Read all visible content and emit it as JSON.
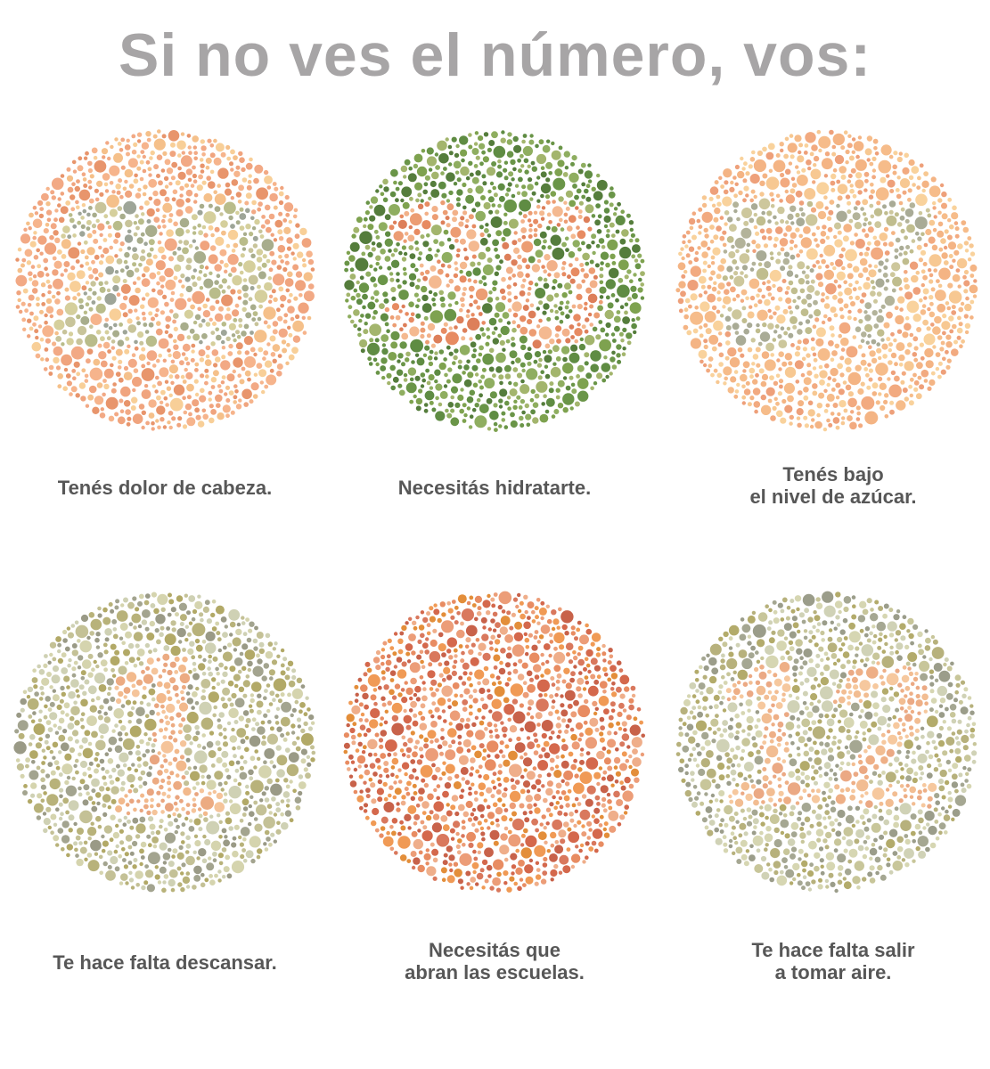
{
  "title": "Si no ves el número, vos:",
  "plates": [
    {
      "number": "29",
      "caption": [
        "Tenés dolor de cabeza."
      ],
      "background_colors": [
        "#f0a47e",
        "#f5c08a",
        "#f6b48c",
        "#e8956c",
        "#f8cf98",
        "#f2a985"
      ],
      "figure_colors": [
        "#9ea598",
        "#b9bc8a",
        "#c8c49a",
        "#a8ad8c",
        "#d5cf9c"
      ],
      "icon": "color-blindness-test-plate-icon"
    },
    {
      "number": "36",
      "caption": [
        "Necesitás hidratarte."
      ],
      "background_colors": [
        "#5f8c43",
        "#7ea24f",
        "#8fae60",
        "#6a9548",
        "#a3b56d",
        "#557d3c"
      ],
      "figure_colors": [
        "#ec9d73",
        "#f2b189",
        "#e78b62",
        "#f4b990",
        "#dd7f5a"
      ],
      "icon": "color-blindness-test-plate-icon"
    },
    {
      "number": "57",
      "caption": [
        "Tenés bajo",
        "el nivel de azúcar."
      ],
      "background_colors": [
        "#f4b484",
        "#f7c892",
        "#eea07a",
        "#f9d29c",
        "#f2aa80",
        "#f6bc8a"
      ],
      "figure_colors": [
        "#a9ab96",
        "#c0bd8e",
        "#b3b39a",
        "#cdc79c"
      ],
      "icon": "color-blindness-test-plate-icon"
    },
    {
      "number": "1",
      "caption": [
        "Te hace falta descansar."
      ],
      "background_colors": [
        "#a3a48f",
        "#c4c196",
        "#b8b27a",
        "#d5d4ae",
        "#9a9a86",
        "#b2a967",
        "#cfd1b4"
      ],
      "figure_colors": [
        "#f2b98c",
        "#ecab82",
        "#f5c49a",
        "#e9a57f"
      ],
      "icon": "color-blindness-test-plate-icon"
    },
    {
      "number": "",
      "caption": [
        "Necesitás que",
        "abran las escuelas."
      ],
      "background_colors": [
        "#d9785d",
        "#e88c62",
        "#ec9d78",
        "#d4684c",
        "#e38e3a",
        "#f09a55",
        "#c8624a",
        "#efae8a"
      ],
      "figure_colors": [
        "#e07a52",
        "#ec9460",
        "#d86e4e"
      ],
      "icon": "color-blindness-test-plate-icon"
    },
    {
      "number": "12",
      "caption": [
        "Te hace falta salir",
        "a tomar aire."
      ],
      "background_colors": [
        "#a5a792",
        "#c8c69a",
        "#b7b17c",
        "#d6d6b2",
        "#9b9d8a",
        "#b3ab6b",
        "#d0d2b6"
      ],
      "figure_colors": [
        "#f2bd92",
        "#eeaf86",
        "#f6c89e",
        "#eba984"
      ],
      "icon": "color-blindness-test-plate-icon"
    }
  ]
}
